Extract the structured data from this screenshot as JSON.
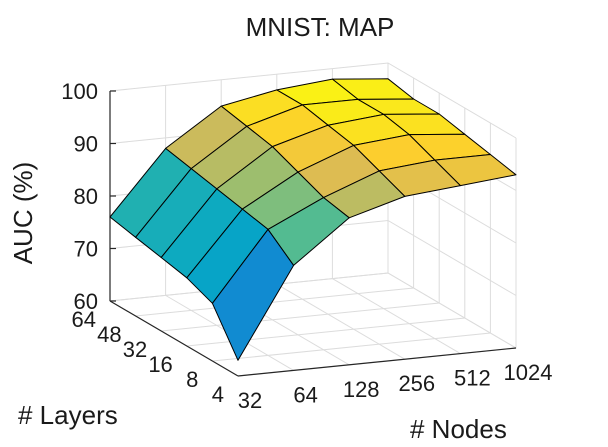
{
  "chart_data": {
    "type": "surface",
    "title": "MNIST: MAP",
    "xlabel": "# Nodes",
    "ylabel": "# Layers",
    "zlabel": "AUC (%)",
    "x": [
      "32",
      "64",
      "128",
      "256",
      "512",
      "1024"
    ],
    "y": [
      "4",
      "8",
      "16",
      "32",
      "48",
      "64"
    ],
    "zlim": [
      60,
      100
    ],
    "zticks": [
      "60",
      "70",
      "80",
      "90",
      "100"
    ],
    "grid": true,
    "z": [
      [
        63,
        80,
        88,
        91,
        92,
        93
      ],
      [
        71,
        84,
        89,
        93,
        94,
        94
      ],
      [
        73,
        85,
        91,
        95,
        96,
        95
      ],
      [
        74,
        86,
        93,
        96,
        97,
        96
      ],
      [
        75,
        87,
        94,
        97,
        97,
        96
      ],
      [
        76,
        88,
        95,
        97,
        98,
        97
      ]
    ]
  }
}
